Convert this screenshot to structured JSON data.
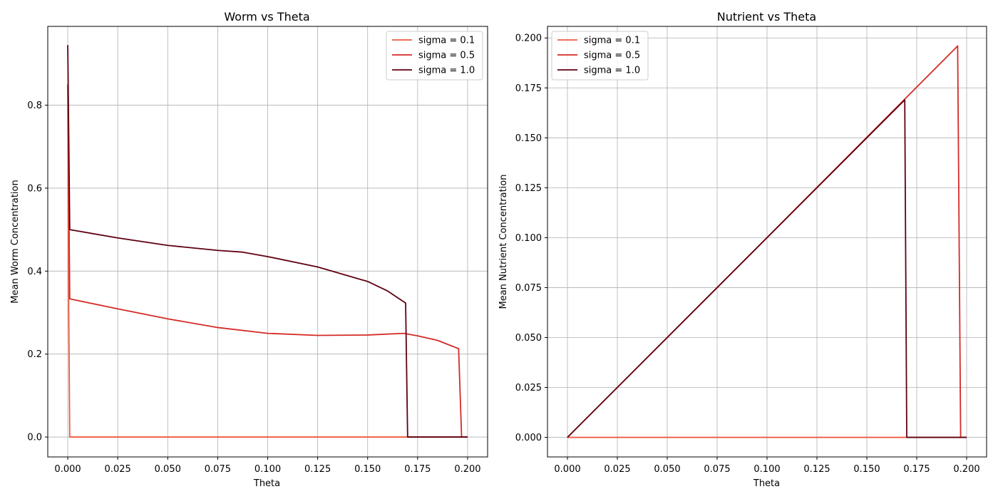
{
  "chart_data": [
    {
      "type": "line",
      "title": "Worm vs Theta",
      "xlabel": "Theta",
      "ylabel": "Mean Worm Concentration",
      "xlim": [
        -0.01,
        0.21
      ],
      "ylim": [
        -0.048,
        0.99
      ],
      "xticks": [
        0.0,
        0.025,
        0.05,
        0.075,
        0.1,
        0.125,
        0.15,
        0.175,
        0.2
      ],
      "xtick_labels": [
        "0.000",
        "0.025",
        "0.050",
        "0.075",
        "0.100",
        "0.125",
        "0.150",
        "0.175",
        "0.200"
      ],
      "yticks": [
        0.0,
        0.2,
        0.4,
        0.6,
        0.8
      ],
      "ytick_labels": [
        "0.0",
        "0.2",
        "0.4",
        "0.6",
        "0.8"
      ],
      "grid": true,
      "legend_position": "top-right",
      "series": [
        {
          "name": "sigma = 0.1",
          "color": "#ee5a40",
          "x": [
            0.0,
            0.0002,
            0.0005,
            0.001,
            0.05,
            0.1,
            0.15,
            0.2
          ],
          "y": [
            0.85,
            0.6,
            0.3,
            0.0,
            0.0,
            0.0,
            0.0,
            0.0
          ]
        },
        {
          "name": "sigma = 0.5",
          "color": "#d42b26",
          "x": [
            0.0,
            0.001,
            0.025,
            0.05,
            0.075,
            0.1,
            0.125,
            0.15,
            0.168,
            0.175,
            0.185,
            0.1955,
            0.197,
            0.2
          ],
          "y": [
            0.85,
            0.333,
            0.309,
            0.285,
            0.264,
            0.25,
            0.245,
            0.246,
            0.25,
            0.244,
            0.233,
            0.213,
            0.0,
            0.0
          ]
        },
        {
          "name": "sigma = 1.0",
          "color": "#5f0010",
          "x": [
            0.0,
            0.001,
            0.025,
            0.05,
            0.075,
            0.087,
            0.1,
            0.125,
            0.15,
            0.16,
            0.169,
            0.17,
            0.2
          ],
          "y": [
            0.945,
            0.5,
            0.48,
            0.462,
            0.45,
            0.446,
            0.435,
            0.41,
            0.375,
            0.352,
            0.323,
            0.0,
            0.0
          ]
        }
      ]
    },
    {
      "type": "line",
      "title": "Nutrient vs Theta",
      "xlabel": "Theta",
      "ylabel": "Mean Nutrient Concentration",
      "xlim": [
        -0.01,
        0.21
      ],
      "ylim": [
        -0.0098,
        0.2058
      ],
      "xticks": [
        0.0,
        0.025,
        0.05,
        0.075,
        0.1,
        0.125,
        0.15,
        0.175,
        0.2
      ],
      "xtick_labels": [
        "0.000",
        "0.025",
        "0.050",
        "0.075",
        "0.100",
        "0.125",
        "0.150",
        "0.175",
        "0.200"
      ],
      "yticks": [
        0.0,
        0.025,
        0.05,
        0.075,
        0.1,
        0.125,
        0.15,
        0.175,
        0.2
      ],
      "ytick_labels": [
        "0.000",
        "0.025",
        "0.050",
        "0.075",
        "0.100",
        "0.125",
        "0.150",
        "0.175",
        "0.200"
      ],
      "grid": true,
      "legend_position": "top-left",
      "series": [
        {
          "name": "sigma = 0.1",
          "color": "#ee5a40",
          "x": [
            0.0,
            0.05,
            0.1,
            0.15,
            0.2
          ],
          "y": [
            0.0,
            0.0,
            0.0,
            0.0,
            0.0
          ]
        },
        {
          "name": "sigma = 0.5",
          "color": "#d42b26",
          "x": [
            0.0,
            0.0955,
            0.1955,
            0.197,
            0.2
          ],
          "y": [
            0.0,
            0.0955,
            0.196,
            0.0,
            0.0
          ]
        },
        {
          "name": "sigma = 1.0",
          "color": "#5f0010",
          "x": [
            0.0,
            0.0845,
            0.169,
            0.17,
            0.2
          ],
          "y": [
            0.0,
            0.0845,
            0.169,
            0.0,
            0.0
          ]
        }
      ]
    }
  ]
}
